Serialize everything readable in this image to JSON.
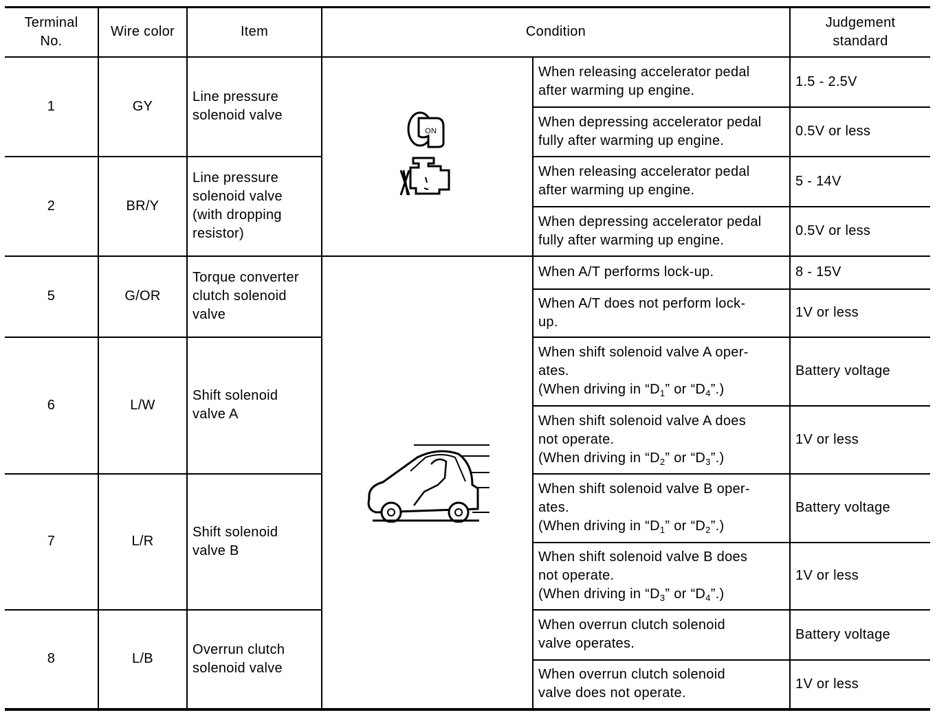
{
  "headers": [
    "Terminal No.",
    "Wire color",
    "Item",
    "Condition",
    "Judgement standard"
  ],
  "header_lines": {
    "terminal": [
      "Terminal",
      "No."
    ],
    "judgement": [
      "Judgement",
      "standard"
    ]
  },
  "icons": {
    "group1": [
      "ignition-key-on-icon",
      "engine-running-icon"
    ],
    "group2": [
      "car-driving-icon"
    ],
    "key_label": "ON"
  },
  "rows": [
    {
      "terminal": "1",
      "wire": "GY",
      "item": [
        "Line pressure",
        "solenoid valve"
      ],
      "conditions": [
        {
          "lines": [
            [
              {
                "t": "When releasing accelerator pedal"
              }
            ],
            [
              {
                "t": "after warming up engine."
              }
            ]
          ],
          "standard": "1.5 - 2.5V"
        },
        {
          "lines": [
            [
              {
                "t": "When depressing accelerator pedal"
              }
            ],
            [
              {
                "t": "fully after warming up engine."
              }
            ]
          ],
          "standard": "0.5V or less"
        }
      ]
    },
    {
      "terminal": "2",
      "wire": "BR/Y",
      "item": [
        "Line pressure",
        "solenoid valve",
        "(with dropping",
        "resistor)"
      ],
      "conditions": [
        {
          "lines": [
            [
              {
                "t": "When releasing accelerator pedal"
              }
            ],
            [
              {
                "t": "after warming up engine."
              }
            ]
          ],
          "standard": "5 - 14V"
        },
        {
          "lines": [
            [
              {
                "t": "When depressing accelerator pedal"
              }
            ],
            [
              {
                "t": "fully after warming up engine."
              }
            ]
          ],
          "standard": "0.5V or less"
        }
      ]
    },
    {
      "terminal": "5",
      "wire": "G/OR",
      "item": [
        "Torque converter",
        "clutch solenoid",
        "valve"
      ],
      "conditions": [
        {
          "lines": [
            [
              {
                "t": "When A/T performs lock-up."
              }
            ]
          ],
          "standard": "8 - 15V"
        },
        {
          "lines": [
            [
              {
                "t": "When A/T does not perform lock-"
              }
            ],
            [
              {
                "t": "up."
              }
            ]
          ],
          "standard": "1V or less"
        }
      ]
    },
    {
      "terminal": "6",
      "wire": "L/W",
      "item": [
        "Shift solenoid",
        "valve A"
      ],
      "conditions": [
        {
          "lines": [
            [
              {
                "t": "When shift solenoid valve A oper-"
              }
            ],
            [
              {
                "t": "ates."
              }
            ],
            [
              {
                "t": "(When driving in “D"
              },
              {
                "sub": "1"
              },
              {
                "t": "” or “D"
              },
              {
                "sub": "4"
              },
              {
                "t": "”.)"
              }
            ]
          ],
          "standard": "Battery voltage"
        },
        {
          "lines": [
            [
              {
                "t": "When shift solenoid valve A does"
              }
            ],
            [
              {
                "t": "not operate."
              }
            ],
            [
              {
                "t": "(When driving in “D"
              },
              {
                "sub": "2"
              },
              {
                "t": "” or “D"
              },
              {
                "sub": "3"
              },
              {
                "t": "”.)"
              }
            ]
          ],
          "standard": "1V or less"
        }
      ]
    },
    {
      "terminal": "7",
      "wire": "L/R",
      "item": [
        "Shift solenoid",
        "valve B"
      ],
      "conditions": [
        {
          "lines": [
            [
              {
                "t": "When shift solenoid valve B oper-"
              }
            ],
            [
              {
                "t": "ates."
              }
            ],
            [
              {
                "t": "(When driving in “D"
              },
              {
                "sub": "1"
              },
              {
                "t": "” or “D"
              },
              {
                "sub": "2"
              },
              {
                "t": "”.)"
              }
            ]
          ],
          "standard": "Battery voltage"
        },
        {
          "lines": [
            [
              {
                "t": "When shift solenoid valve B does"
              }
            ],
            [
              {
                "t": "not operate."
              }
            ],
            [
              {
                "t": "(When driving in “D"
              },
              {
                "sub": "3"
              },
              {
                "t": "” or “D"
              },
              {
                "sub": "4"
              },
              {
                "t": "”.)"
              }
            ]
          ],
          "standard": "1V or less"
        }
      ]
    },
    {
      "terminal": "8",
      "wire": "L/B",
      "item": [
        "Overrun clutch",
        "solenoid valve"
      ],
      "conditions": [
        {
          "lines": [
            [
              {
                "t": "When overrun clutch solenoid"
              }
            ],
            [
              {
                "t": "valve operates."
              }
            ]
          ],
          "standard": "Battery voltage"
        },
        {
          "lines": [
            [
              {
                "t": "When overrun clutch solenoid"
              }
            ],
            [
              {
                "t": "valve does not operate."
              }
            ]
          ],
          "standard": "1V or less"
        }
      ]
    }
  ]
}
